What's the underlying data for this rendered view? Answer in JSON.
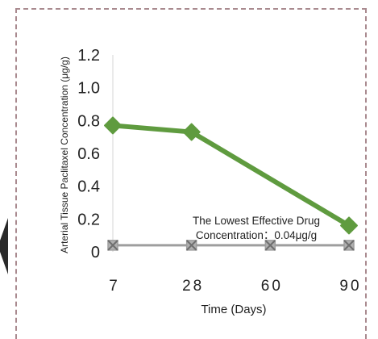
{
  "chart_data": {
    "type": "line",
    "categories": [
      "7",
      "28",
      "60",
      "90"
    ],
    "series": [
      {
        "values": [
          0.77,
          0.73,
          null,
          0.16
        ],
        "color": "#5f9b3f",
        "marker": "diamond"
      },
      {
        "values": [
          0.04,
          0.04,
          0.04,
          0.04
        ],
        "color": "#9e9e9e",
        "marker": "x"
      }
    ],
    "drug_line": {
      "x": [
        7,
        28,
        90
      ],
      "y": [
        0.77,
        0.73,
        0.16
      ]
    },
    "threshold": 0.04,
    "yticks": [
      "0",
      "0.2",
      "0.4",
      "0.6",
      "0.8",
      "1.0",
      "1.2"
    ],
    "ylim": [
      0,
      1.2
    ],
    "xlabel": "Time (Days)",
    "ylabel": "Arterial Tissue Paclitaxel Concentration (μg/g)",
    "annotation": [
      "The Lowest Effective Drug",
      "Concentration：0.04μg/g"
    ],
    "grid": false
  }
}
